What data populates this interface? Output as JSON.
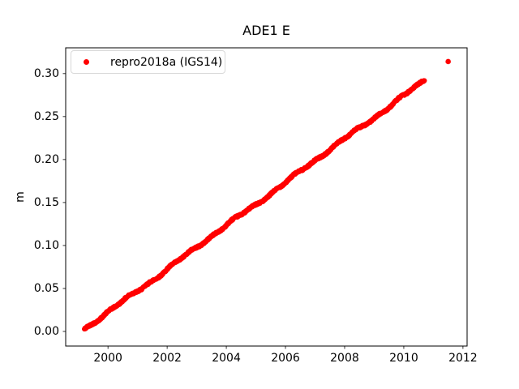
{
  "chart_data": {
    "type": "scatter",
    "title": "ADE1 E",
    "xlabel": "",
    "ylabel": "m",
    "xlim": [
      1998.57,
      2012.14
    ],
    "ylim": [
      -0.017,
      0.33
    ],
    "xticks": [
      2000,
      2002,
      2004,
      2006,
      2008,
      2010,
      2012
    ],
    "yticks": [
      0.0,
      0.05,
      0.1,
      0.15,
      0.2,
      0.25,
      0.3
    ],
    "ytick_decimals": 2,
    "grid": false,
    "legend": {
      "position": "upper left",
      "entries": [
        {
          "label": "repro2018a (IGS14)",
          "color": "#ff0000",
          "marker": "circle"
        }
      ]
    },
    "series": [
      {
        "name": "repro2018a (IGS14)",
        "color": "#ff0000",
        "marker_diameter_px": 6,
        "trend": {
          "x_start": 1999.2,
          "y_start": 0.002,
          "x_end": 2010.7,
          "y_end": 0.292,
          "slope_m_per_yr": 0.0252
        },
        "sample_step_yr": 0.01,
        "noise_amplitude_m": 0.003,
        "key_points": [
          [
            1999.2,
            0.002
          ],
          [
            2000.0,
            0.022
          ],
          [
            2001.0,
            0.047
          ],
          [
            2002.0,
            0.073
          ],
          [
            2003.0,
            0.098
          ],
          [
            2004.0,
            0.123
          ],
          [
            2005.0,
            0.148
          ],
          [
            2006.0,
            0.174
          ],
          [
            2007.0,
            0.199
          ],
          [
            2008.0,
            0.224
          ],
          [
            2009.0,
            0.249
          ],
          [
            2010.0,
            0.274
          ],
          [
            2010.7,
            0.292
          ]
        ],
        "outlier_points": [
          [
            2011.5,
            0.314
          ]
        ]
      }
    ],
    "colors": {
      "marker": "#ff0000",
      "axis": "#000000",
      "background": "#ffffff",
      "legend_border": "#d8d8d8",
      "text": "#000000"
    }
  }
}
